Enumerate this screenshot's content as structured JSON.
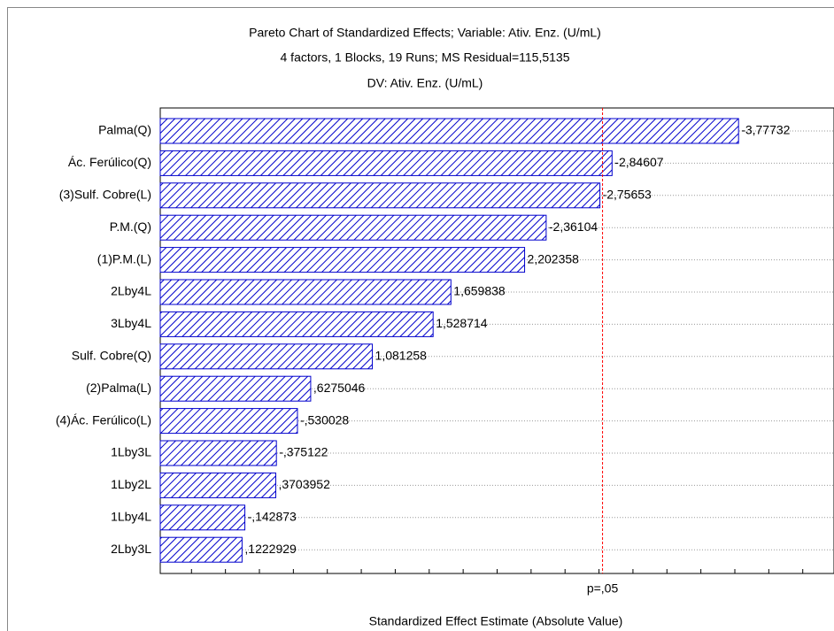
{
  "chart_data": {
    "type": "bar",
    "orientation": "horizontal",
    "title": "Pareto Chart of Standardized Effects; Variable: Ativ. Enz. (U/mL)",
    "subtitle": "4 factors, 1 Blocks, 19 Runs; MS Residual=115,5135",
    "subtitle2": "DV: Ativ. Enz. (U/mL)",
    "xlabel": "Standardized Effect Estimate (Absolute Value)",
    "categories": [
      "Palma(Q)",
      "Ác. Ferúlico(Q)",
      "(3)Sulf. Cobre(L)",
      "P.M.(Q)",
      "(1)P.M.(L)",
      "2Lby4L",
      "3Lby4L",
      "Sulf. Cobre(Q)",
      "(2)Palma(L)",
      "(4)Ác. Ferúlico(L)",
      "1Lby3L",
      "1Lby2L",
      "1Lby4L",
      "2Lby3L"
    ],
    "values": [
      3.77732,
      2.84607,
      2.75653,
      2.36104,
      2.202358,
      1.659838,
      1.528714,
      1.081258,
      0.6275046,
      0.530028,
      0.375122,
      0.3703952,
      0.142873,
      0.1222929
    ],
    "value_labels": [
      "-3,77732",
      "-2,84607",
      "-2,75653",
      "-2,36104",
      "2,202358",
      "1,659838",
      "1,528714",
      "1,081258",
      ",6275046",
      "-,530028",
      "-,375122",
      ",3703952",
      "-,142873",
      ",1222929"
    ],
    "color": "#0000cc",
    "xlim": [
      -0.48,
      4.48
    ],
    "xticks": [
      -0.25,
      0,
      0.25,
      0.5,
      0.75,
      1,
      1.25,
      1.5,
      1.75,
      2,
      2.25,
      2.5,
      2.75,
      3,
      3.25,
      3.5,
      3.75,
      4,
      4.25
    ],
    "reference_line": {
      "value": 2.776,
      "label": "p=,05",
      "color": "#ff0000"
    },
    "grid": true
  }
}
